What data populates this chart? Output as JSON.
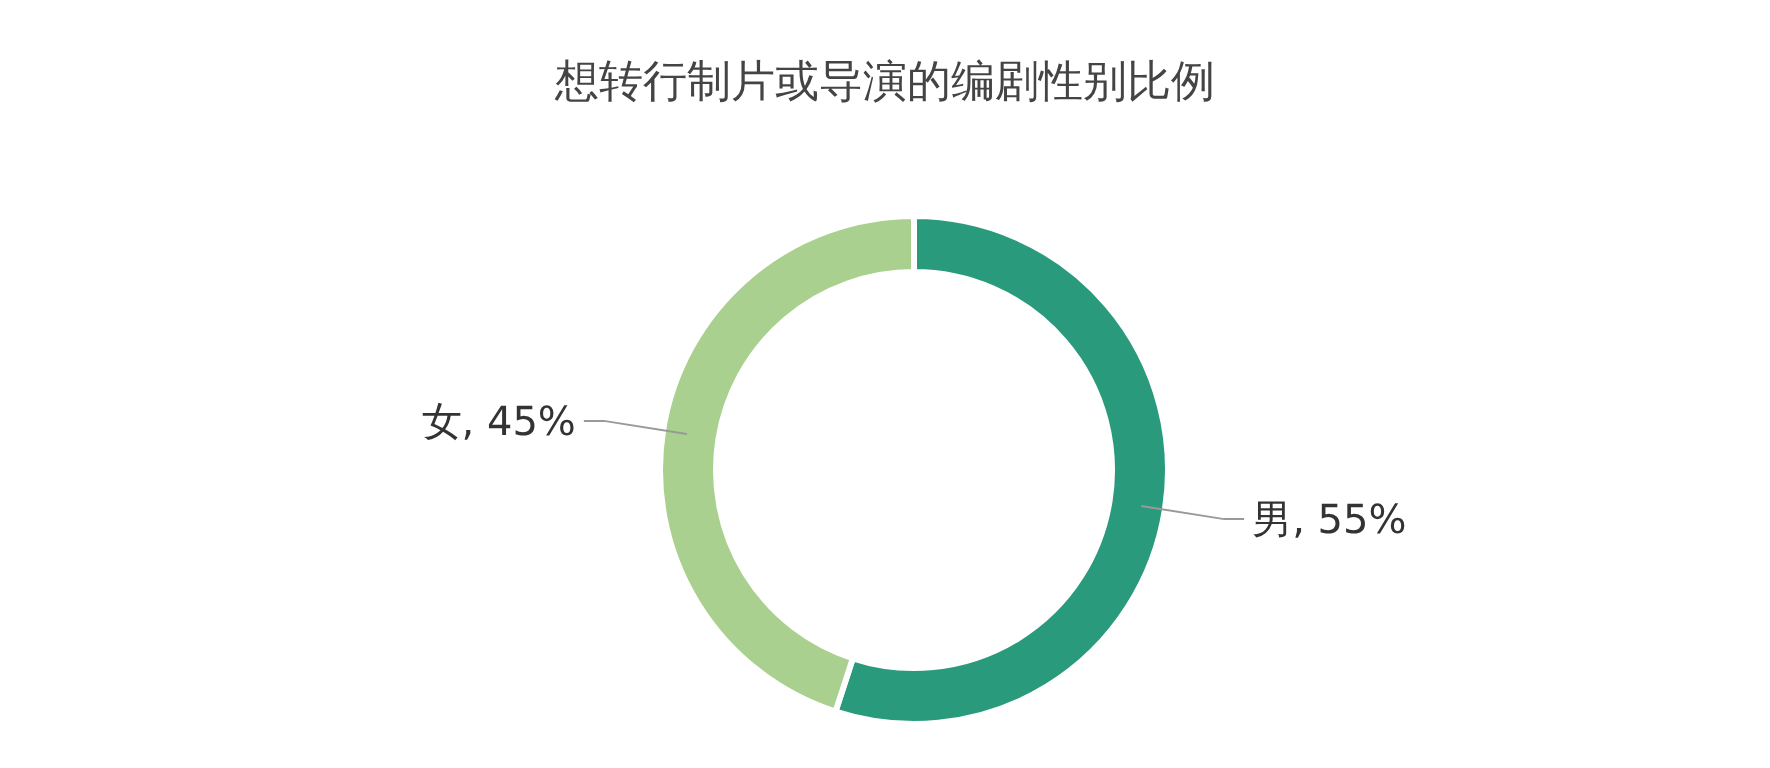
{
  "chart_data": {
    "type": "donut",
    "title": "想转行制片或导演的编剧性别比例",
    "categories": [
      "男",
      "女"
    ],
    "values": [
      55,
      45
    ],
    "value_labels": [
      "55%",
      "45%"
    ],
    "colors": [
      "#2a9a7c",
      "#a9d08e"
    ],
    "legend": false
  }
}
